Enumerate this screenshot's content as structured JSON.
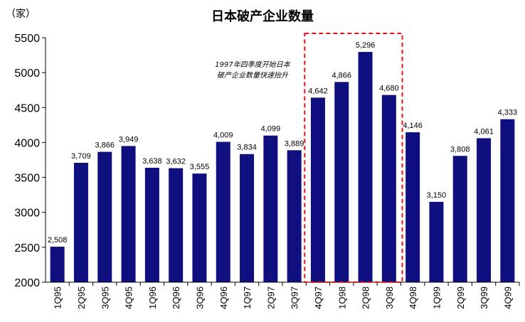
{
  "chart_data": {
    "type": "bar",
    "title": "日本破产企业数量",
    "ylabel": "（家）",
    "xlabel": "",
    "ylim": [
      2000,
      5500
    ],
    "yticks": [
      2000,
      2500,
      3000,
      3500,
      4000,
      4500,
      5000,
      5500
    ],
    "grid": false,
    "legend": "none",
    "bar_color": "#0f0f7f",
    "categories": [
      "1Q95",
      "2Q95",
      "3Q95",
      "4Q95",
      "1Q96",
      "2Q96",
      "3Q96",
      "4Q96",
      "1Q97",
      "2Q97",
      "3Q97",
      "4Q97",
      "1Q98",
      "2Q98",
      "3Q98",
      "4Q98",
      "1Q99",
      "2Q99",
      "3Q99",
      "4Q99"
    ],
    "values": [
      2508,
      3709,
      3866,
      3949,
      3638,
      3632,
      3555,
      4009,
      3834,
      4099,
      3889,
      4642,
      4866,
      5296,
      4680,
      4146,
      3150,
      3808,
      4061,
      4333
    ],
    "value_labels": [
      "2,508",
      "3,709",
      "3,866",
      "3,949",
      "3,638",
      "3,632",
      "3,555",
      "4,009",
      "3,834",
      "4,099",
      "3,889",
      "4,642",
      "4,866",
      "5,296",
      "4,680",
      "4,146",
      "3,150",
      "3,808",
      "4,061",
      "4,333"
    ],
    "annotation": {
      "lines": [
        "1997年四季度开始日本",
        "破产企业数量快速抬升"
      ],
      "highlight_categories": [
        "4Q97",
        "1Q98",
        "2Q98",
        "3Q98"
      ],
      "highlight_color": "#e8141a"
    }
  }
}
